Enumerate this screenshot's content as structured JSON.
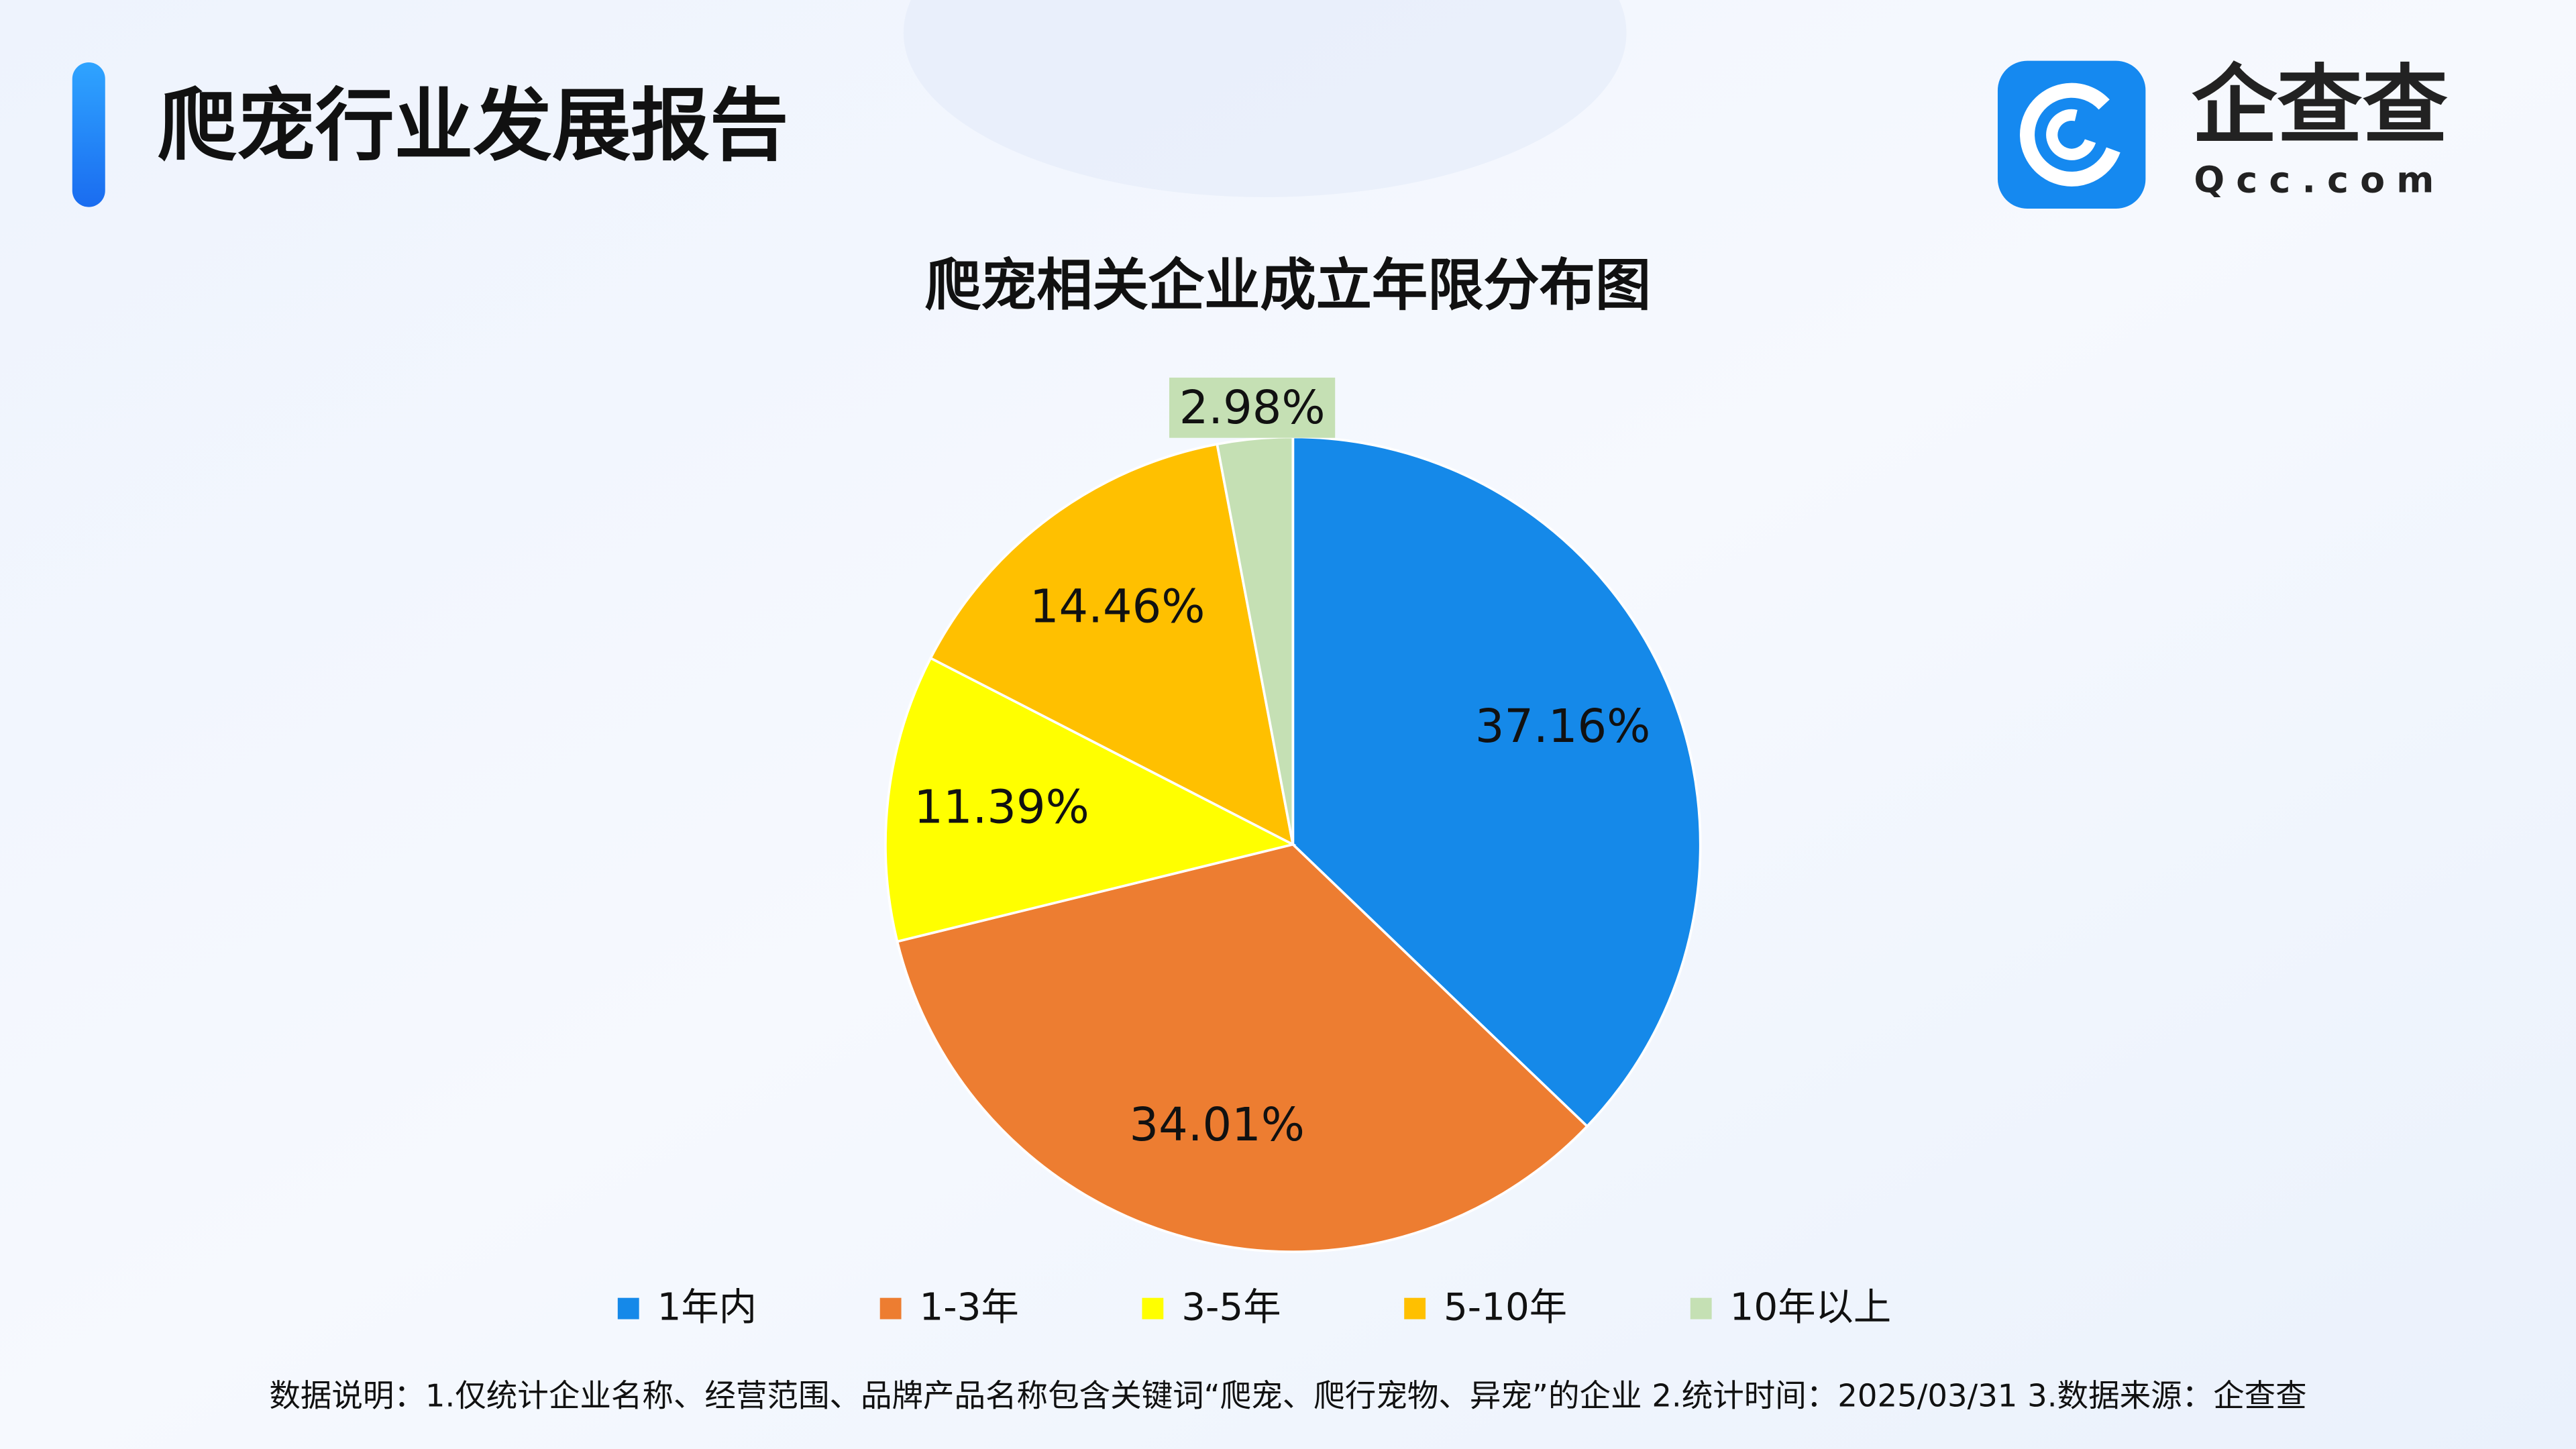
{
  "header": {
    "title": "爬宠行业发展报告",
    "logo_name": "企查查",
    "logo_domain": "Qcc.com"
  },
  "chart_data": {
    "type": "pie",
    "title": "爬宠相关企业成立年限分布图",
    "categories": [
      "1年内",
      "1-3年",
      "3-5年",
      "5-10年",
      "10年以上"
    ],
    "values": [
      37.16,
      34.01,
      11.39,
      14.46,
      2.98
    ],
    "value_labels": [
      "37.16%",
      "34.01%",
      "11.39%",
      "14.46%",
      "2.98%"
    ],
    "colors": [
      "#1589e9",
      "#ed7d31",
      "#ffff00",
      "#ffc000",
      "#c5e0b4"
    ],
    "legend": "bottom"
  },
  "footnote": "数据说明：1.仅统计企业名称、经营范围、品牌产品名称包含关键词“爬宠、爬行宠物、异宠”的企业   2.统计时间：2025/03/31    3.数据来源：企查查"
}
